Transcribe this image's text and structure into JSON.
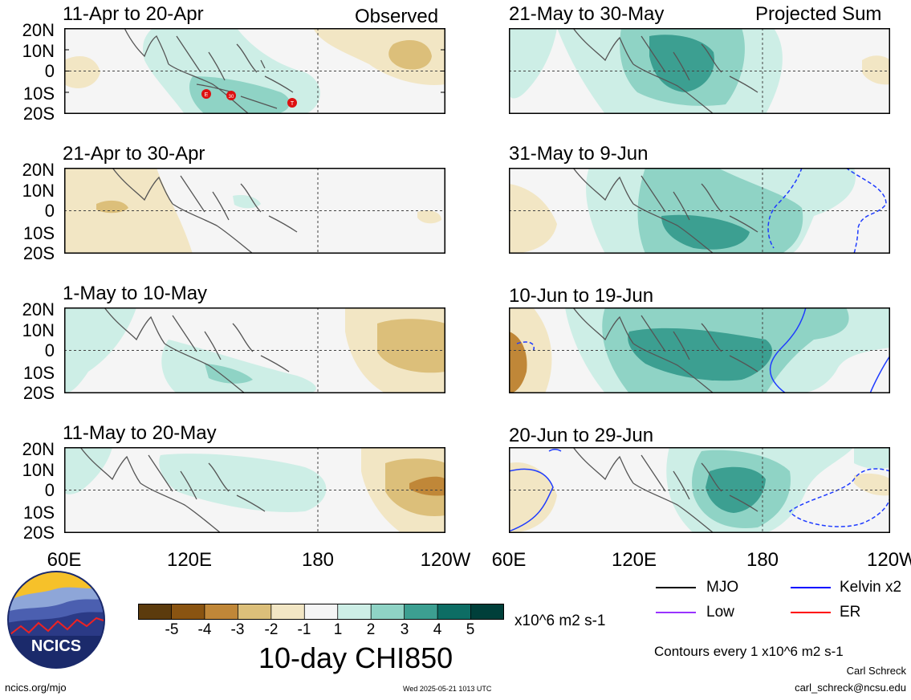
{
  "panels": {
    "left": [
      {
        "title": "11-Apr to 20-Apr",
        "corner": "Observed"
      },
      {
        "title": "21-Apr to 30-Apr",
        "corner": ""
      },
      {
        "title": "1-May to 10-May",
        "corner": ""
      },
      {
        "title": "11-May to 20-May",
        "corner": ""
      }
    ],
    "right": [
      {
        "title": "21-May to 30-May",
        "corner": "Projected Sum"
      },
      {
        "title": "31-May to 9-Jun",
        "corner": ""
      },
      {
        "title": "10-Jun to 19-Jun",
        "corner": ""
      },
      {
        "title": "20-Jun to 29-Jun",
        "corner": ""
      }
    ]
  },
  "y_ticks": [
    "20N",
    "10N",
    "0",
    "10S",
    "20S"
  ],
  "x_ticks": [
    "60E",
    "120E",
    "180",
    "120W"
  ],
  "storm_markers": [
    "E",
    "30",
    "T"
  ],
  "colorbar": {
    "ticks": [
      "-5",
      "-4",
      "-3",
      "-2",
      "-1",
      "1",
      "2",
      "3",
      "4",
      "5"
    ],
    "units": "x10^6 m2 s-1",
    "colors": [
      "#5c3b0d",
      "#8a5411",
      "#c08738",
      "#dcbf7a",
      "#f2e6c4",
      "#f5f5f5",
      "#cdeee6",
      "#8fd3c5",
      "#3c9f91",
      "#0d6d64",
      "#003f3a"
    ]
  },
  "chart_title": "10-day CHI850",
  "legend": [
    {
      "label": "MJO",
      "color": "#000000"
    },
    {
      "label": "Kelvin x2",
      "color": "#0000ff"
    },
    {
      "label": "Low",
      "color": "#9933ff"
    },
    {
      "label": "ER",
      "color": "#ff0000"
    }
  ],
  "contours_note": "Contours every 1 x10^6 m2 s-1",
  "author": "Carl Schreck",
  "email": "carl_schreck@ncsu.edu",
  "url": "ncics.org/mjo",
  "timestamp": "Wed 2025-05-21 1013 UTC",
  "logo_text": "NCICS"
}
